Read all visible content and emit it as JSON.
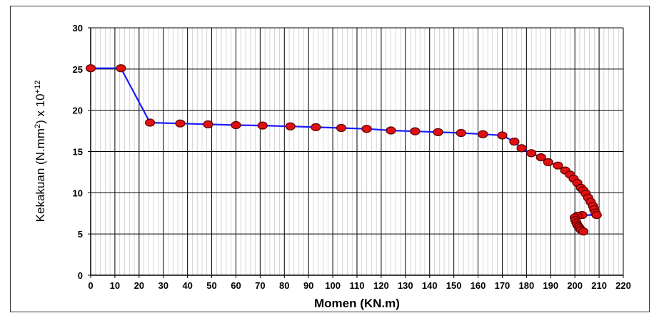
{
  "chart_data": {
    "type": "line",
    "xlabel": "Momen (KN.m)",
    "ylabel": {
      "prefix": "Kekakuan (N.mm",
      "sup1": "2",
      "mid": ") x 10",
      "sup2": "+12"
    },
    "xlim": [
      0,
      220
    ],
    "ylim": [
      0,
      30
    ],
    "x_ticks": [
      0,
      10,
      20,
      30,
      40,
      50,
      60,
      70,
      80,
      90,
      100,
      110,
      120,
      130,
      140,
      150,
      160,
      170,
      180,
      190,
      200,
      210,
      220
    ],
    "y_ticks": [
      0,
      5,
      10,
      15,
      20,
      25,
      30
    ],
    "grid": true,
    "colors": {
      "line": "#1a1aff",
      "marker_fill": "#e01010",
      "marker_stroke": "#5a0000",
      "grid": "#000000"
    },
    "series": [
      {
        "x": [
          0,
          12.5,
          24.5,
          37,
          48.5,
          60,
          71,
          82.5,
          93,
          103.5,
          114,
          124,
          134,
          143.5,
          153,
          162,
          170,
          175,
          178,
          182,
          186,
          189,
          193,
          196,
          198,
          199.5,
          201,
          202.5,
          203.5,
          204.5,
          205.5,
          206.5,
          207.5,
          208,
          208.5,
          209,
          203,
          201,
          200,
          200.2,
          200.6,
          201,
          201.5,
          202,
          202.5,
          203.5
        ],
        "y": [
          25.1,
          25.1,
          18.5,
          18.4,
          18.3,
          18.2,
          18.15,
          18.05,
          17.95,
          17.85,
          17.75,
          17.55,
          17.45,
          17.35,
          17.25,
          17.1,
          16.95,
          16.2,
          15.4,
          14.8,
          14.3,
          13.7,
          13.3,
          12.7,
          12.2,
          11.7,
          11.2,
          10.6,
          10.3,
          9.9,
          9.4,
          8.9,
          8.4,
          8.0,
          7.6,
          7.3,
          7.3,
          7.2,
          7.0,
          6.7,
          6.4,
          6.1,
          5.9,
          5.7,
          5.5,
          5.3
        ]
      }
    ]
  }
}
